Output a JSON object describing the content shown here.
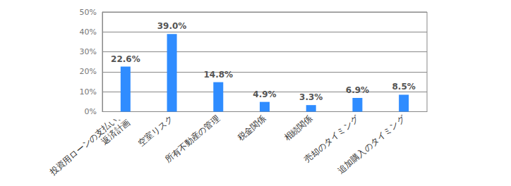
{
  "chart_data": {
    "type": "bar",
    "categories": [
      "投資用ローンの支払い、\n返済計画",
      "空室リスク",
      "所有不動産の管理",
      "税金関係",
      "相続関係",
      "売却のタイミング",
      "追加購入のタイミング"
    ],
    "values": [
      22.6,
      39.0,
      14.8,
      4.9,
      3.3,
      6.9,
      8.5
    ],
    "value_labels": [
      "22.6%",
      "39.0%",
      "14.8%",
      "4.9%",
      "3.3%",
      "6.9%",
      "8.5%"
    ],
    "color": "#2f8cff",
    "ylim": [
      0,
      50
    ],
    "yticks": [
      {
        "value": 0,
        "label": "0%"
      },
      {
        "value": 10,
        "label": "10%"
      },
      {
        "value": 20,
        "label": "20%"
      },
      {
        "value": 30,
        "label": "30%"
      },
      {
        "value": 40,
        "label": "40%"
      },
      {
        "value": 50,
        "label": "50%"
      }
    ],
    "grid": true,
    "data_labels": true
  }
}
